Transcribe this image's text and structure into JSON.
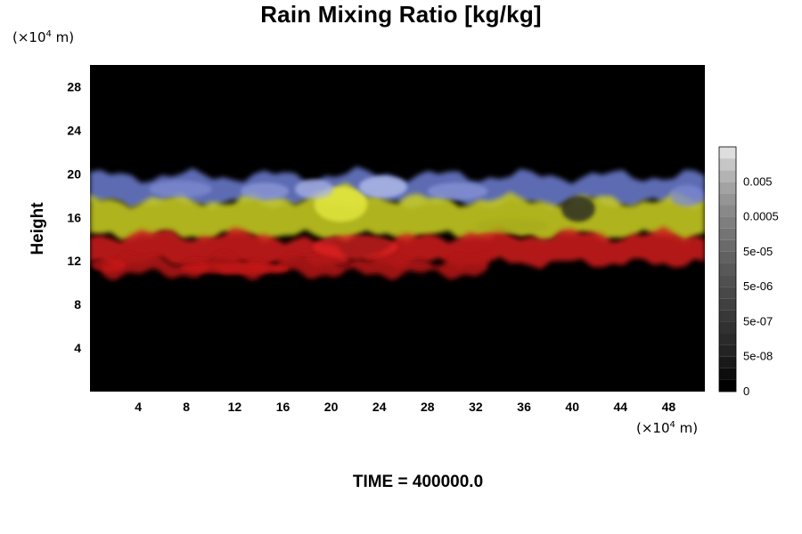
{
  "chart_data": {
    "type": "heatmap",
    "title": "Rain Mixing Ratio [kg/kg]",
    "ylabel": "Height",
    "x_unit": {
      "prefix": "(×10",
      "exponent": "4",
      "suffix": " m)"
    },
    "y_unit": {
      "prefix": "(×10",
      "exponent": "4",
      "suffix": " m)"
    },
    "xlim": [
      0,
      51
    ],
    "ylim": [
      0,
      30
    ],
    "x_ticks": [
      "4",
      "8",
      "12",
      "16",
      "20",
      "24",
      "28",
      "32",
      "36",
      "40",
      "44",
      "48"
    ],
    "x_tick_values": [
      4,
      8,
      12,
      16,
      20,
      24,
      28,
      32,
      36,
      40,
      44,
      48
    ],
    "y_ticks": [
      "4",
      "8",
      "12",
      "16",
      "20",
      "24",
      "28"
    ],
    "y_tick_values": [
      4,
      8,
      12,
      16,
      20,
      24,
      28
    ],
    "grid": false,
    "background_color": "#000000",
    "colorbar": {
      "labels": [
        "0",
        "5e-08",
        "5e-07",
        "5e-06",
        "5e-05",
        "0.0005",
        "0.005"
      ],
      "label_levels": [
        0,
        3,
        6,
        9,
        12,
        15,
        18
      ],
      "levels": 21,
      "colors": [
        "#000000",
        "#0d0d0d",
        "#191919",
        "#232323",
        "#2a2a2a",
        "#313131",
        "#383838",
        "#404040",
        "#484848",
        "#505050",
        "#585858",
        "#616161",
        "#6a6a6a",
        "#747474",
        "#7e7e7e",
        "#898989",
        "#959595",
        "#a3a3a3",
        "#b3b3b3",
        "#c6c6c6",
        "#dedede"
      ]
    },
    "bands": [
      {
        "name_color": "#6a7acc",
        "y_bottom": 17.3,
        "y_top": 19.8,
        "peak_x": 24,
        "peak_y": 20.0
      },
      {
        "name_color": "#c8cc22",
        "y_bottom": 14.3,
        "y_top": 17.6,
        "peak_x": 21,
        "peak_y": 18.5
      },
      {
        "name_color": "#cc1a1a",
        "y_bottom": 11.8,
        "y_top": 14.4,
        "peak_x": 22,
        "peak_y": 12.5
      },
      {
        "name_color": "#b01212",
        "y_bottom": 10.8,
        "y_top": 12.2,
        "x_start": 1,
        "x_end": 33
      }
    ],
    "annotation": {
      "label": "TIME",
      "value": "400000.0"
    }
  }
}
